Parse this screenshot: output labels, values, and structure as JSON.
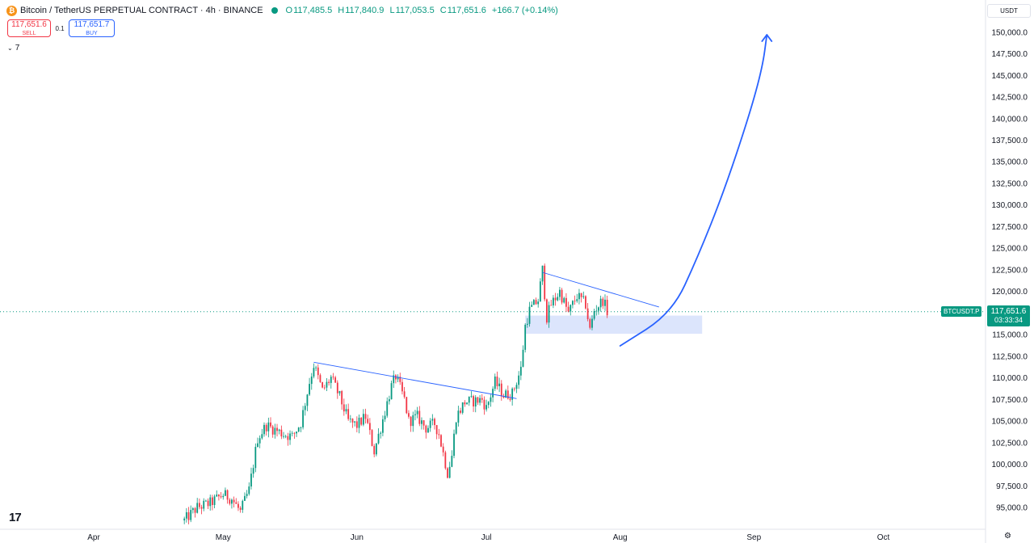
{
  "header": {
    "logo_glyph": "₿",
    "title": "Bitcoin / TetherUS PERPETUAL CONTRACT · 4h · BINANCE",
    "ohlc": {
      "o_label": "O",
      "o": "117,485.5",
      "h_label": "H",
      "h": "117,840.9",
      "l_label": "L",
      "l": "117,053.5",
      "c_label": "C",
      "c": "117,651.6",
      "chg": "+166.7 (+0.14%)"
    },
    "status_color": "#089981"
  },
  "trade": {
    "sell_price": "117,651.6",
    "sell_label": "SELL",
    "spread": "0.1",
    "buy_price": "117,651.7",
    "buy_label": "BUY"
  },
  "indicators": {
    "count": "7",
    "chevron_icon": "chevron-down-icon"
  },
  "currency": "USDT",
  "price_tag": {
    "symbol": "BTCUSDT.P",
    "price": "117,651.6",
    "countdown": "03:33:34",
    "color": "#089981"
  },
  "colors": {
    "up": "#089981",
    "down": "#f23645",
    "drawing": "#2962ff",
    "zone": "#d6e0fb"
  },
  "chart_data": {
    "type": "candlestick",
    "current_price": 117651.6,
    "y_ticks": [
      95000,
      97500,
      100000,
      102500,
      105000,
      107500,
      110000,
      112500,
      115000,
      117500,
      120000,
      122500,
      125000,
      127500,
      130000,
      132500,
      135000,
      137500,
      140000,
      142500,
      145000,
      147500,
      150000
    ],
    "y_tick_labels": [
      "95,000.0",
      "97,500.0",
      "100,000.0",
      "102,500.0",
      "105,000.0",
      "107,500.0",
      "110,000.0",
      "112,500.0",
      "115,000.0",
      "117,500.0",
      "120,000.0",
      "122,500.0",
      "125,000.0",
      "127,500.0",
      "130,000.0",
      "132,500.0",
      "135,000.0",
      "137,500.0",
      "140,000.0",
      "142,500.0",
      "145,000.0",
      "147,500.0",
      "150,000.0"
    ],
    "x_ticks": [
      {
        "label": "Apr",
        "date": "2025-04-01"
      },
      {
        "label": "May",
        "date": "2025-05-01"
      },
      {
        "label": "Jun",
        "date": "2025-06-01"
      },
      {
        "label": "Jul",
        "date": "2025-07-01"
      },
      {
        "label": "Aug",
        "date": "2025-08-01"
      },
      {
        "label": "Sep",
        "date": "2025-09-01"
      },
      {
        "label": "Oct",
        "date": "2025-10-01"
      }
    ],
    "price_path": [
      [
        "2025-04-22",
        93500
      ],
      [
        "2025-04-25",
        95000
      ],
      [
        "2025-04-28",
        95500
      ],
      [
        "2025-05-01",
        96500
      ],
      [
        "2025-05-03",
        96000
      ],
      [
        "2025-05-05",
        94500
      ],
      [
        "2025-05-07",
        97000
      ],
      [
        "2025-05-09",
        103000
      ],
      [
        "2025-05-11",
        104500
      ],
      [
        "2025-05-13",
        104000
      ],
      [
        "2025-05-15",
        103500
      ],
      [
        "2025-05-17",
        103200
      ],
      [
        "2025-05-19",
        104800
      ],
      [
        "2025-05-21",
        109500
      ],
      [
        "2025-05-22",
        111500
      ],
      [
        "2025-05-24",
        108500
      ],
      [
        "2025-05-26",
        110000
      ],
      [
        "2025-05-28",
        107800
      ],
      [
        "2025-05-30",
        105000
      ],
      [
        "2025-06-01",
        104500
      ],
      [
        "2025-06-03",
        105500
      ],
      [
        "2025-06-05",
        101500
      ],
      [
        "2025-06-07",
        105200
      ],
      [
        "2025-06-09",
        109000
      ],
      [
        "2025-06-10",
        110200
      ],
      [
        "2025-06-12",
        107500
      ],
      [
        "2025-06-13",
        105000
      ],
      [
        "2025-06-15",
        105500
      ],
      [
        "2025-06-17",
        104200
      ],
      [
        "2025-06-19",
        104700
      ],
      [
        "2025-06-20",
        103500
      ],
      [
        "2025-06-22",
        99000
      ],
      [
        "2025-06-23",
        101000
      ],
      [
        "2025-06-24",
        105500
      ],
      [
        "2025-06-26",
        107200
      ],
      [
        "2025-06-28",
        107300
      ],
      [
        "2025-06-30",
        107500
      ],
      [
        "2025-07-01",
        106500
      ],
      [
        "2025-07-03",
        109500
      ],
      [
        "2025-07-05",
        108000
      ],
      [
        "2025-07-07",
        108200
      ],
      [
        "2025-07-09",
        111000
      ],
      [
        "2025-07-10",
        116000
      ],
      [
        "2025-07-11",
        117800
      ],
      [
        "2025-07-13",
        119000
      ],
      [
        "2025-07-14",
        122500
      ],
      [
        "2025-07-15",
        117000
      ],
      [
        "2025-07-16",
        118500
      ],
      [
        "2025-07-18",
        120000
      ],
      [
        "2025-07-20",
        117500
      ],
      [
        "2025-07-22",
        119500
      ],
      [
        "2025-07-24",
        118500
      ],
      [
        "2025-07-25",
        115500
      ],
      [
        "2025-07-26",
        117800
      ],
      [
        "2025-07-28",
        119000
      ],
      [
        "2025-07-29",
        117700
      ]
    ],
    "annotations": {
      "trendline_1": {
        "from": [
          "2025-05-22",
          111800
        ],
        "to": [
          "2025-07-08",
          107600
        ]
      },
      "trendline_2": {
        "from": [
          "2025-07-14",
          122200
        ],
        "to": [
          "2025-08-10",
          118200
        ]
      },
      "support_zone": {
        "x0": "2025-07-10",
        "x1": "2025-08-20",
        "y0": 115100,
        "y1": 117200
      },
      "projection_arrow": {
        "points": [
          [
            "2025-08-01",
            113700
          ],
          [
            "2025-08-13",
            117500
          ],
          [
            "2025-08-19",
            124000
          ],
          [
            "2025-08-25",
            131500
          ],
          [
            "2025-08-31",
            140500
          ],
          [
            "2025-09-03",
            146000
          ],
          [
            "2025-09-04",
            149700
          ]
        ]
      }
    }
  }
}
